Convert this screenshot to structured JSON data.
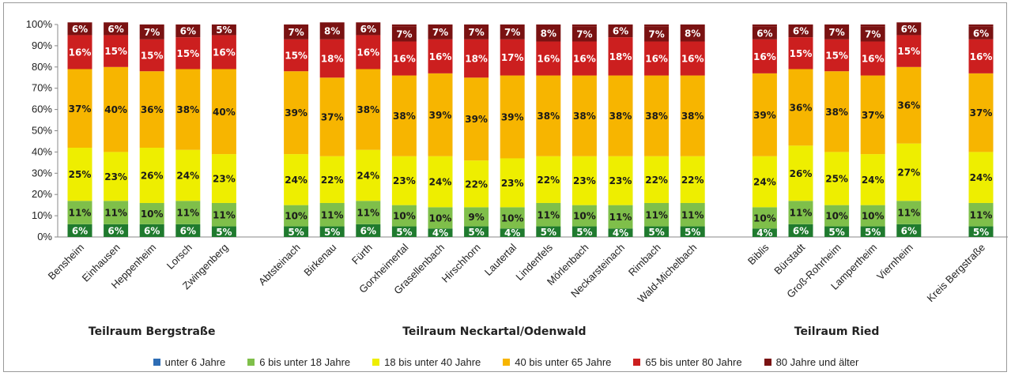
{
  "chart_data": {
    "type": "bar",
    "stacked": true,
    "percent": true,
    "yticks": [
      "0%",
      "10%",
      "20%",
      "30%",
      "40%",
      "50%",
      "60%",
      "70%",
      "80%",
      "90%",
      "100%"
    ],
    "ylim": [
      0,
      100
    ],
    "grid": false,
    "legend_position": "bottom",
    "groups": [
      {
        "label": "Teilraum Bergstraße",
        "categories": [
          "Bensheim",
          "Einhausen",
          "Heppenheim",
          "Lorsch",
          "Zwingenberg"
        ]
      },
      {
        "label": "Teilraum Neckartal/Odenwald",
        "categories": [
          "Abtsteinach",
          "Birkenau",
          "Fürth",
          "Gorxheimertal",
          "Grasellenbach",
          "Hirschhorn",
          "Lautertal",
          "Lindenfels",
          "Mörlenbach",
          "Neckarsteinach",
          "Rimbach",
          "Wald-Michelbach"
        ]
      },
      {
        "label": "Teilraum Ried",
        "categories": [
          "Biblis",
          "Bürstadt",
          "Groß-Rohrheim",
          "Lampertheim",
          "Viernheim"
        ]
      },
      {
        "label": "",
        "categories": [
          "Kreis Bergstraße"
        ]
      }
    ],
    "categories": [
      "Bensheim",
      "Einhausen",
      "Heppenheim",
      "Lorsch",
      "Zwingenberg",
      "Abtsteinach",
      "Birkenau",
      "Fürth",
      "Gorxheimertal",
      "Grasellenbach",
      "Hirschhorn",
      "Lautertal",
      "Lindenfels",
      "Mörlenbach",
      "Neckarsteinach",
      "Rimbach",
      "Wald-Michelbach",
      "Biblis",
      "Bürstadt",
      "Groß-Rohrheim",
      "Lampertheim",
      "Viernheim",
      "Kreis Bergstraße"
    ],
    "series": [
      {
        "name": "unter 6 Jahre",
        "color": "#1f7a2e",
        "label_color": "#ffffff",
        "values": [
          6,
          6,
          6,
          6,
          5,
          5,
          5,
          6,
          5,
          4,
          5,
          4,
          5,
          5,
          4,
          5,
          5,
          4,
          6,
          5,
          5,
          6,
          5
        ]
      },
      {
        "name": "6 bis unter 18 Jahre",
        "color": "#7fbf4a",
        "label_color": "#1a1a1a",
        "values": [
          11,
          11,
          10,
          11,
          11,
          10,
          11,
          11,
          10,
          10,
          9,
          10,
          11,
          10,
          11,
          11,
          11,
          10,
          11,
          10,
          10,
          11,
          11
        ]
      },
      {
        "name": "18 bis unter 40 Jahre",
        "color": "#eeee00",
        "label_color": "#1a1a1a",
        "values": [
          25,
          23,
          26,
          24,
          23,
          24,
          22,
          24,
          23,
          24,
          22,
          23,
          22,
          23,
          23,
          22,
          22,
          24,
          26,
          25,
          24,
          27,
          24
        ]
      },
      {
        "name": "40 bis unter 65 Jahre",
        "color": "#f7b500",
        "label_color": "#1a1a1a",
        "values": [
          37,
          40,
          36,
          38,
          40,
          39,
          37,
          38,
          38,
          39,
          39,
          39,
          38,
          38,
          38,
          38,
          38,
          39,
          36,
          38,
          37,
          36,
          37
        ]
      },
      {
        "name": "65 bis unter 80 Jahre",
        "color": "#cc1f1f",
        "label_color": "#ffffff",
        "values": [
          16,
          15,
          15,
          15,
          16,
          15,
          18,
          16,
          16,
          16,
          18,
          17,
          16,
          16,
          18,
          16,
          16,
          16,
          15,
          15,
          16,
          15,
          16
        ]
      },
      {
        "name": "80 Jahre und älter",
        "color": "#7a1212",
        "label_color": "#ffffff",
        "values": [
          6,
          6,
          7,
          6,
          5,
          7,
          8,
          6,
          7,
          7,
          7,
          7,
          8,
          7,
          6,
          7,
          8,
          6,
          6,
          7,
          7,
          6,
          6
        ]
      }
    ],
    "legend_colors": [
      "#2e6db5",
      "#7fbf4a",
      "#eeee00",
      "#f7b500",
      "#cc1f1f",
      "#7a1212"
    ]
  }
}
